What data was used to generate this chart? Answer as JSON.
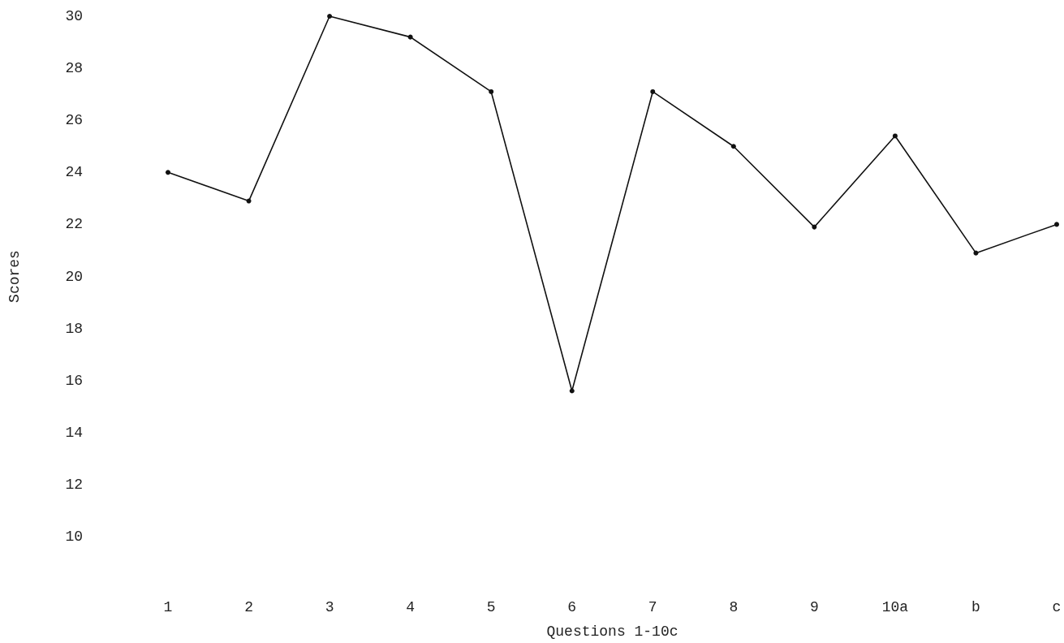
{
  "chart_data": {
    "type": "line",
    "xlabel": "Questions 1-10c",
    "ylabel": "Scores",
    "categories": [
      "1",
      "2",
      "3",
      "4",
      "5",
      "6",
      "7",
      "8",
      "9",
      "10a",
      "b",
      "c"
    ],
    "series": [
      {
        "color": "#111111",
        "values": [
          24.0,
          22.9,
          30.0,
          29.2,
          27.1,
          15.6,
          27.1,
          25.0,
          21.9,
          25.4,
          20.9,
          22.0
        ]
      }
    ],
    "ylim": [
      10,
      30
    ],
    "yticks": [
      10,
      12,
      14,
      16,
      18,
      20,
      22,
      24,
      26,
      28,
      30
    ],
    "marker": "circle",
    "line_style": "solid"
  }
}
